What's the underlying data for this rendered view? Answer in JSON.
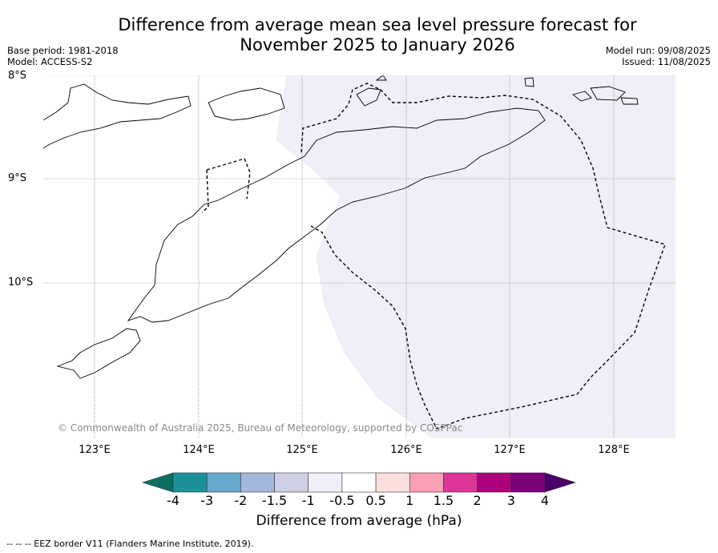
{
  "title_line1": "Difference from average mean sea level pressure forecast for",
  "title_line2": "November 2025 to January 2026",
  "base_period": "Base period: 1981-2018",
  "model": "Model: ACCESS-S2",
  "model_run": "Model run: 09/08/2025",
  "issued": "Issued: 11/08/2025",
  "lat_labels": [
    "8°S",
    "9°S",
    "10°S"
  ],
  "lon_labels": [
    "123°E",
    "124°E",
    "125°E",
    "126°E",
    "127°E",
    "128°E"
  ],
  "copyright": "© Commonwealth of Australia 2025, Bureau of Meteorology, supported by COSPPac",
  "colorbar": {
    "ticks": [
      "-4",
      "-3",
      "-2",
      "-1.5",
      "-1",
      "-0.5",
      "0.5",
      "1",
      "1.5",
      "2",
      "3",
      "4"
    ],
    "colors": [
      "#0d6e63",
      "#1c9199",
      "#65a9cf",
      "#a5b8db",
      "#cfcfe5",
      "#f2eef7",
      "#ffffff",
      "#fde0dd",
      "#fa9fb5",
      "#dd3497",
      "#ae017e",
      "#7a0177",
      "#49006a"
    ],
    "label": "Difference from average (hPa)"
  },
  "shading": {
    "category": "-0.5 to -1",
    "color": "#f2eef7"
  },
  "footnote": "-- -- -- EEZ border V11 (Flanders Marine Institute, 2019)."
}
